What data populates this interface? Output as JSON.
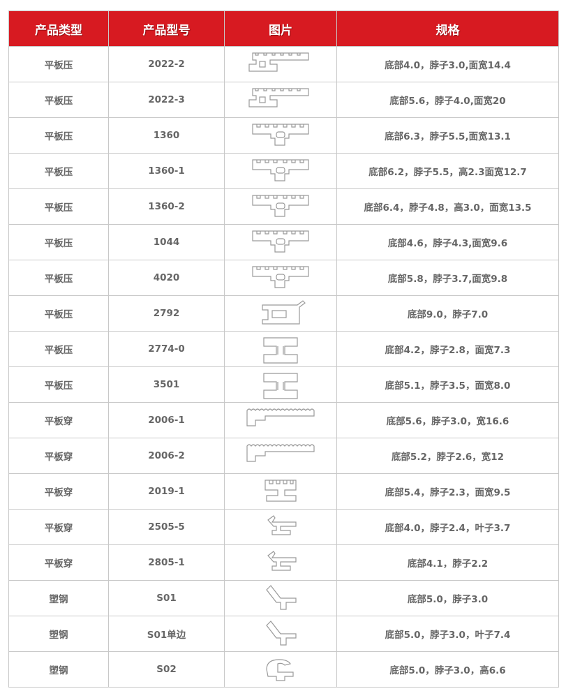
{
  "table": {
    "headers": [
      "产品类型",
      "产品型号",
      "图片",
      "规格"
    ],
    "rows": [
      {
        "type": "平板压",
        "model": "2022-2",
        "pic": "comb-wide",
        "spec": "底部4.0，脖子3.0,面宽14.4"
      },
      {
        "type": "平板压",
        "model": "2022-3",
        "pic": "comb-wide",
        "spec": "底部5.6，脖子4.0,面宽20"
      },
      {
        "type": "平板压",
        "model": "1360",
        "pic": "comb-mid",
        "spec": "底部6.3，脖子5.5,面宽13.1"
      },
      {
        "type": "平板压",
        "model": "1360-1",
        "pic": "comb-mid",
        "spec": "底部6.2，脖子5.5，高2.3面宽12.7"
      },
      {
        "type": "平板压",
        "model": "1360-2",
        "pic": "comb-mid",
        "spec": "底部6.4，脖子4.8，高3.0，面宽13.5"
      },
      {
        "type": "平板压",
        "model": "1044",
        "pic": "comb-mid",
        "spec": "底部4.6，脖子4.3,面宽9.6"
      },
      {
        "type": "平板压",
        "model": "4020",
        "pic": "comb-mid",
        "spec": "底部5.8，脖子3.7,面宽9.8"
      },
      {
        "type": "平板压",
        "model": "2792",
        "pic": "hook",
        "spec": "底部9.0，脖子7.0"
      },
      {
        "type": "平板压",
        "model": "2774-0",
        "pic": "i-beam",
        "spec": "底部4.2，脖子2.8，面宽7.3"
      },
      {
        "type": "平板压",
        "model": "3501",
        "pic": "i-beam",
        "spec": "底部5.1，脖子3.5，面宽8.0"
      },
      {
        "type": "平板穿",
        "model": "2006-1",
        "pic": "wave-long",
        "spec": "底部5.6，脖子3.0，宽16.6"
      },
      {
        "type": "平板穿",
        "model": "2006-2",
        "pic": "wave-long",
        "spec": "底部5.2，脖子2.6，宽12"
      },
      {
        "type": "平板穿",
        "model": "2019-1",
        "pic": "comb-small",
        "spec": "底部5.4，脖子2.3，面宽9.5"
      },
      {
        "type": "平板穿",
        "model": "2505-5",
        "pic": "leaf",
        "spec": "底部4.0，脖子2.4，叶子3.7"
      },
      {
        "type": "平板穿",
        "model": "2805-1",
        "pic": "leaf",
        "spec": "底部4.1，脖子2.2"
      },
      {
        "type": "塑钢",
        "model": "S01",
        "pic": "leaf-angle",
        "spec": "底部5.0，脖子3.0"
      },
      {
        "type": "塑钢",
        "model": "S01单边",
        "pic": "leaf-angle",
        "spec": "底部5.0，脖子3.0，叶子7.4"
      },
      {
        "type": "塑钢",
        "model": "S02",
        "pic": "loop",
        "spec": "底部5.0，脖子3.0，高6.6"
      }
    ]
  },
  "colors": {
    "header_bg": "#d71a21",
    "header_text": "#ffffff",
    "cell_text": "#666666",
    "border": "#c8c8c8"
  }
}
